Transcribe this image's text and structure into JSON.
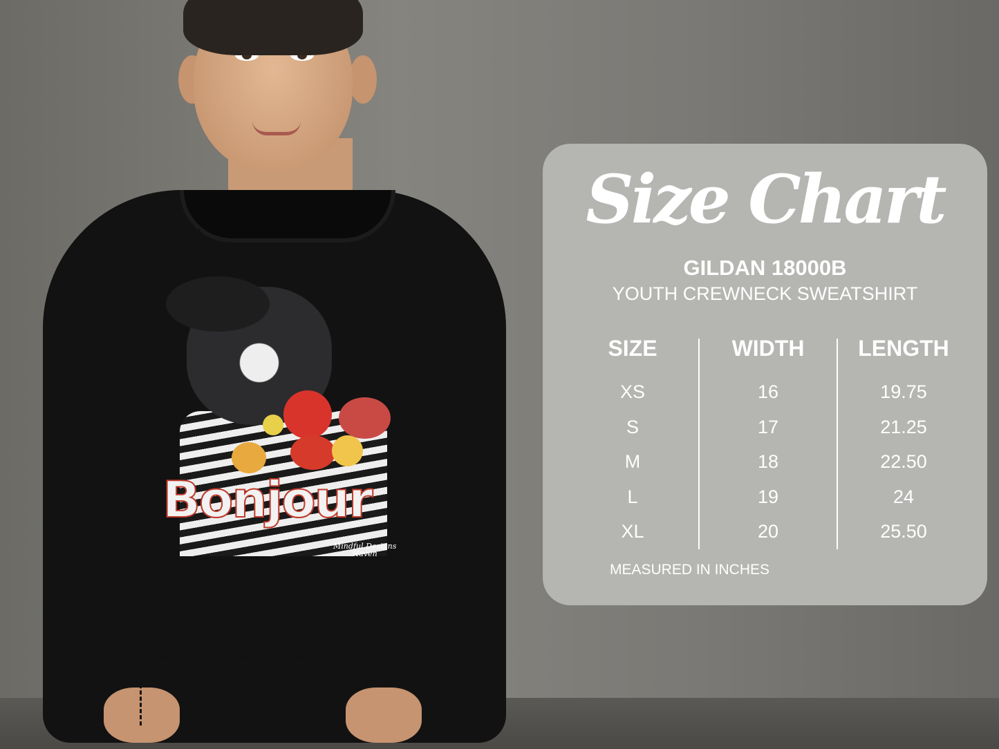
{
  "mockup": {
    "print_text": "Bonjour",
    "print_brand": [
      "Mindful Designs",
      "Haven"
    ],
    "length_label": "LENGTH",
    "width_label": "WIDTH",
    "colors": {
      "sweatshirt": "#121212",
      "panel": "#b5b5b2",
      "text": "#ffffff"
    }
  },
  "size_chart": {
    "title": "Size Chart",
    "model": "GILDAN 18000B",
    "product": "YOUTH CREWNECK SWEATSHIRT",
    "columns": [
      "SIZE",
      "WIDTH",
      "LENGTH"
    ],
    "rows": [
      [
        "XS",
        "16",
        "19.75"
      ],
      [
        "S",
        "17",
        "21.25"
      ],
      [
        "M",
        "18",
        "22.50"
      ],
      [
        "L",
        "19",
        "24"
      ],
      [
        "XL",
        "20",
        "25.50"
      ]
    ],
    "note": "MEASURED IN INCHES"
  }
}
